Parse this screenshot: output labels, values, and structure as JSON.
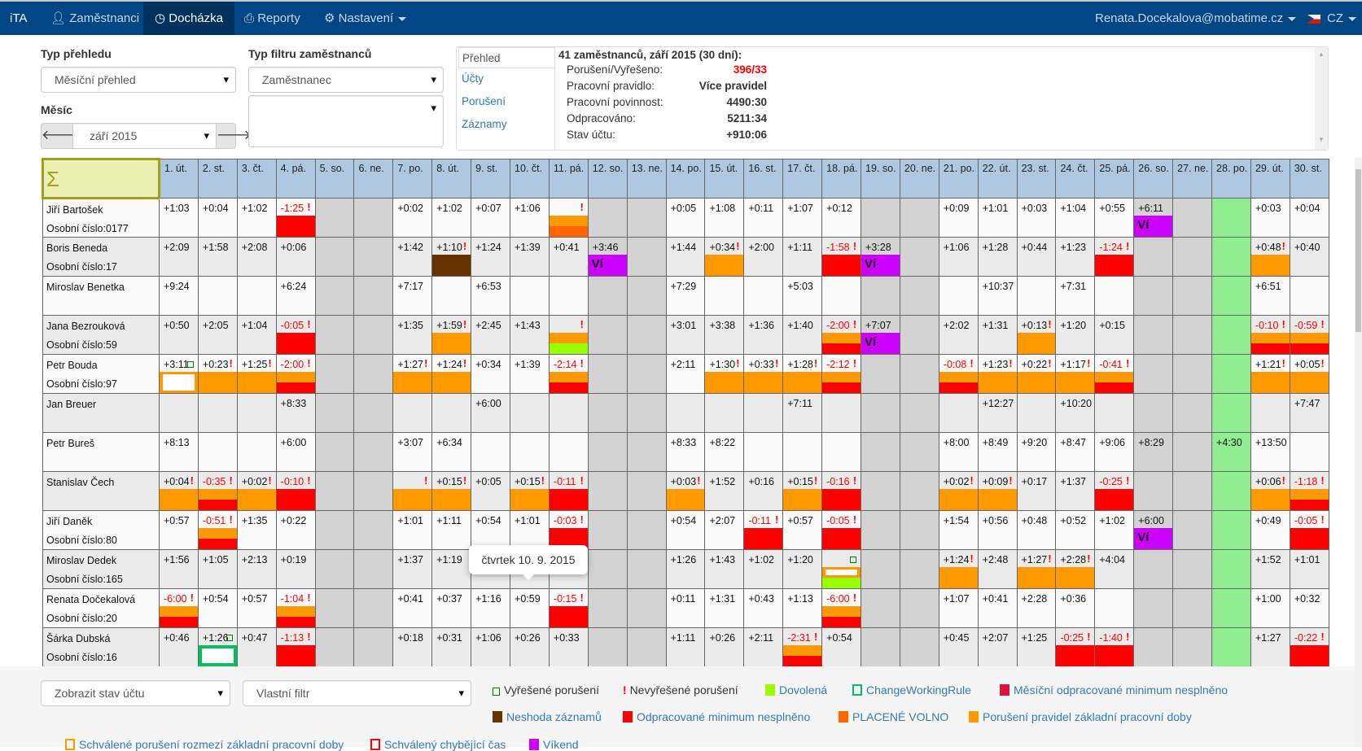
{
  "nav": {
    "brand": "iTA",
    "items": [
      {
        "label": "Zaměstnanci",
        "icon": "user-icon"
      },
      {
        "label": "Docházka",
        "icon": "clock-icon",
        "active": true
      },
      {
        "label": "Reporty",
        "icon": "printer-icon"
      },
      {
        "label": "Nastavení",
        "icon": "gear-icon"
      }
    ],
    "user": "Renata.Docekalova@mobatime.cz",
    "lang": "CZ"
  },
  "filters": {
    "overview_type_label": "Typ přehledu",
    "overview_type_value": "Měsíční přehled",
    "month_label": "Měsíc",
    "month_value": "září 2015",
    "employee_filter_label": "Typ filtru zaměstnanců",
    "employee_filter_value": "Zaměstnanec",
    "employee_filter_text": ""
  },
  "summary": {
    "tabs": [
      "Přehled",
      "Účty",
      "Porušení",
      "Záznamy"
    ],
    "active_tab": "Přehled",
    "title": "41 zaměstnanců, září 2015 (30 dní):",
    "rows": [
      {
        "label": "Porušení/Vyřešeno:",
        "value": "396/33",
        "red": true
      },
      {
        "label": "Pracovní pravidlo:",
        "value": "Více pravidel"
      },
      {
        "label": "Pracovní povinnost:",
        "value": "4490:30"
      },
      {
        "label": "Odpracováno:",
        "value": "5211:34"
      },
      {
        "label": "Stav účtu:",
        "value": "+910:06"
      }
    ]
  },
  "table": {
    "sigma": "Σ",
    "days": [
      {
        "l": "1. út.",
        "t": "w"
      },
      {
        "l": "2. st.",
        "t": "w"
      },
      {
        "l": "3. čt.",
        "t": "w"
      },
      {
        "l": "4. pá.",
        "t": "w"
      },
      {
        "l": "5. so.",
        "t": "we"
      },
      {
        "l": "6. ne.",
        "t": "we"
      },
      {
        "l": "7. po.",
        "t": "w"
      },
      {
        "l": "8. út.",
        "t": "w"
      },
      {
        "l": "9. st.",
        "t": "w"
      },
      {
        "l": "10. čt.",
        "t": "w"
      },
      {
        "l": "11. pá.",
        "t": "w"
      },
      {
        "l": "12. so.",
        "t": "we"
      },
      {
        "l": "13. ne.",
        "t": "we"
      },
      {
        "l": "14. po.",
        "t": "w"
      },
      {
        "l": "15. út.",
        "t": "w"
      },
      {
        "l": "16. st.",
        "t": "w"
      },
      {
        "l": "17. čt.",
        "t": "w"
      },
      {
        "l": "18. pá.",
        "t": "w"
      },
      {
        "l": "19. so.",
        "t": "we"
      },
      {
        "l": "20. ne.",
        "t": "we"
      },
      {
        "l": "21. po.",
        "t": "w"
      },
      {
        "l": "22. út.",
        "t": "w"
      },
      {
        "l": "23. st.",
        "t": "w"
      },
      {
        "l": "24. čt.",
        "t": "w"
      },
      {
        "l": "25. pá.",
        "t": "w"
      },
      {
        "l": "26. so.",
        "t": "we"
      },
      {
        "l": "27. ne.",
        "t": "we"
      },
      {
        "l": "28. po.",
        "t": "h"
      },
      {
        "l": "29. út.",
        "t": "w"
      },
      {
        "l": "30. st.",
        "t": "w"
      }
    ],
    "vacation_bar_label": "Ví",
    "rows": [
      {
        "name": "Jiří Bartošek",
        "id": "Osobní číslo:0177",
        "cells": [
          "+1:03",
          "+0:04",
          "+1:02",
          "-1:25|!|r",
          "",
          "",
          "+0:02",
          "+1:02",
          "+0:07",
          "+1:06",
          "|!|op",
          "",
          "",
          "+0:05",
          "+1:08",
          "+0:11",
          "+1:07",
          "+0:12",
          "",
          "",
          "+0:09",
          "+1:01",
          "+0:03",
          "+1:04",
          "+0:55",
          "+6:11||v",
          "",
          "",
          "+0:03",
          "+0:04"
        ]
      },
      {
        "name": "Boris Beneda",
        "id": "Osobní číslo:17",
        "cells": [
          "+2:09",
          "+1:58",
          "+2:08",
          "+0:06",
          "",
          "",
          "+1:42",
          "+1:10|!|b",
          "+1:24",
          "+1:39",
          "+0:41",
          "+3:46||v",
          "",
          "+1:44",
          "+0:34|!|o",
          "+2:00",
          "+1:11",
          "-1:58|!|r",
          "+3:28||v",
          "",
          "+1:06",
          "+1:28",
          "+0:44",
          "+1:23",
          "-1:24|!|r",
          "",
          "",
          "",
          "+0:48|!|o",
          "+0:40"
        ]
      },
      {
        "name": "Miroslav Benetka",
        "id": "",
        "cells": [
          "+9:24",
          "",
          "",
          "+6:24",
          "",
          "",
          "+7:17",
          "",
          "+6:53",
          "",
          "",
          "",
          "",
          "+7:29",
          "",
          "",
          "+5:03",
          "",
          "",
          "",
          "",
          "+10:37",
          "",
          "+7:31",
          "",
          "",
          "",
          "",
          "+6:51",
          ""
        ]
      },
      {
        "name": "Jana Bezrouková",
        "id": "Osobní číslo:59",
        "cells": [
          "+0:50",
          "+2:05",
          "+1:04",
          "-0:05|!|r",
          "",
          "",
          "+1:35",
          "+1:59|!|o",
          "+2:45",
          "+1:43",
          "|!|ol",
          "",
          "",
          "+3:01",
          "+3:38",
          "+1:36",
          "+1:40",
          "-2:00|!|or",
          "+7:07||v",
          "",
          "+2:02",
          "+1:31",
          "+0:13|!|o",
          "+1:20",
          "+0:15",
          "",
          "",
          "",
          "-0:10|!|or",
          "-0:59|!|or"
        ]
      },
      {
        "name": "Petr Bouda",
        "id": "Osobní číslo:97",
        "cells": [
          "+3:11|ok|s",
          "+0:23|!|o",
          "+1:25|!|o",
          "-2:00|!|or",
          "",
          "",
          "+1:27|!|o",
          "+1:24|!|o",
          "+0:34",
          "+1:39",
          "-2:14|!|or",
          "",
          "",
          "+2:11",
          "+1:30|!|o",
          "+0:33|!|o",
          "+1:28|!|o",
          "-2:12|!|or",
          "",
          "",
          "-0:08|!|or",
          "+1:23|!|o",
          "+0:22|!|o",
          "+1:17|!|o",
          "-0:41|!|or",
          "",
          "",
          "",
          "+1:21|!|o",
          "+0:05|!|o"
        ]
      },
      {
        "name": "Jan Breuer",
        "id": "",
        "cells": [
          "",
          "",
          "",
          "+8:33",
          "",
          "",
          "",
          "",
          "+6:00",
          "",
          "",
          "",
          "",
          "",
          "",
          "",
          "+7:11",
          "",
          "",
          "",
          "",
          "+12:27",
          "",
          "+10:20",
          "",
          "",
          "",
          "",
          "",
          "+7:47"
        ]
      },
      {
        "name": "Petr Bureš",
        "id": "",
        "cells": [
          "+8:13",
          "",
          "",
          "+6:00",
          "",
          "",
          "+3:07",
          "+6:34",
          "",
          "",
          "",
          "",
          "",
          "+8:33",
          "+8:22",
          "",
          "",
          "",
          "",
          "",
          "+8:00",
          "+8:49",
          "+9:20",
          "+8:47",
          "+9:06",
          "+8:29",
          "",
          "+4:30",
          "+13:50",
          ""
        ]
      },
      {
        "name": "Stanislav Čech",
        "id": "",
        "cells": [
          "+0:04|!|o",
          "-0:35|!|or",
          "+0:02|!|o",
          "-0:10|!|r",
          "",
          "",
          "|!|o",
          "+0:15|!|o",
          "+0:05",
          "+0:15|!|o",
          "-0:11|!|r",
          "",
          "",
          "+0:03|!|o",
          "+1:52",
          "+0:16",
          "+0:15|!|o",
          "-0:16|!|r",
          "",
          "",
          "+0:02|!|o",
          "+0:09|!|o",
          "+0:17",
          "+1:37",
          "-0:25|!|r",
          "",
          "",
          "",
          "+0:06|!|o",
          "-1:18|!|or"
        ]
      },
      {
        "name": "Jiří Daněk",
        "id": "Osobní číslo:80",
        "cells": [
          "+0:57",
          "-0:51|!|or",
          "+1:35",
          "+0:22",
          "",
          "",
          "+1:01",
          "+1:11",
          "+0:54",
          "+1:01",
          "-0:03|!|r",
          "",
          "",
          "+0:54",
          "+2:07",
          "-0:11|!|r",
          "+0:57",
          "-0:05|!|r",
          "",
          "",
          "+1:54",
          "+0:56",
          "+0:48",
          "+0:52",
          "+1:02",
          "+6:00||v",
          "",
          "",
          "+0:49",
          "-0:05|!|r"
        ]
      },
      {
        "name": "Miroslav Dedek",
        "id": "Osobní číslo:165",
        "cells": [
          "+1:56",
          "+1:05",
          "+2:13",
          "+0:19",
          "",
          "",
          "+1:37",
          "+1:19",
          "",
          "",
          "",
          "",
          "",
          "+1:26",
          "+1:43",
          "+1:02",
          "+1:20",
          "|ok|sl",
          "",
          "",
          "+1:24|!|o",
          "+2:48",
          "+1:27|!|o",
          "+2:28|!|o",
          "+4:04",
          "",
          "",
          "",
          "+1:52",
          "+1:01"
        ]
      },
      {
        "name": "Renata Dočekalová",
        "id": "Osobní číslo:20",
        "cells": [
          "-6:00|!|or",
          "+0:54",
          "+0:57",
          "-1:04|!|or",
          "",
          "",
          "+0:41",
          "+0:37",
          "+1:16",
          "+0:59",
          "-0:15|!|r",
          "",
          "",
          "+0:11",
          "+1:31",
          "+0:43",
          "+1:13",
          "-6:00|!|or",
          "",
          "",
          "+1:07",
          "+0:41",
          "+2:28",
          "+0:36",
          "",
          "",
          "",
          "",
          "+1:00",
          "+0:32"
        ]
      },
      {
        "name": "Šárka Dubská",
        "id": "Osobní číslo:16",
        "cells": [
          "+0:46",
          "+1:26|ok|g",
          "+0:47",
          "-1:13|!|r",
          "",
          "",
          "+0:18",
          "+0:31",
          "+1:06",
          "+0:26",
          "+0:33",
          "",
          "",
          "+1:11",
          "+0:26",
          "+2:11",
          "-2:31|!|or",
          "+0:54",
          "",
          "",
          "+0:45",
          "+2:07",
          "+1:25",
          "-0:25|!|r",
          "-1:40|!|r",
          "",
          "",
          "",
          "+1:27",
          "-0:22|!|r"
        ]
      },
      {
        "name": "",
        "id": "",
        "cells": [
          "",
          "",
          "",
          "",
          "",
          "",
          "",
          "",
          "",
          "",
          "",
          "",
          "",
          "",
          "",
          "",
          "",
          "",
          "",
          "",
          "",
          "",
          "",
          "",
          "",
          "",
          "",
          "",
          "",
          ""
        ]
      }
    ]
  },
  "tooltip": "čtvrtek 10. 9. 2015",
  "footer": {
    "account_select": "Zobrazit stav účtu",
    "custom_filter": "Vlastní filtr",
    "legend": [
      {
        "label": "Vyřešené porušení",
        "kind": "ok",
        "color": "#008000"
      },
      {
        "label": "Nevyřešené porušení",
        "kind": "mark",
        "color": "#ff0000"
      },
      {
        "label": "Dovolená",
        "kind": "fill",
        "color": "#99ff00"
      },
      {
        "label": "ChangeWorkingRule",
        "kind": "outline",
        "color": "#00c060"
      },
      {
        "label": "Měsíční odpracované minimum nesplněno",
        "kind": "fill",
        "color": "#dc143c"
      },
      {
        "label": "Neshoda záznamů",
        "kind": "fill",
        "color": "#663300"
      },
      {
        "label": "Odpracované minimum nesplněno",
        "kind": "fill",
        "color": "#ff0000"
      },
      {
        "label": "PLACENÉ VOLNO",
        "kind": "fill",
        "color": "#ff6600"
      },
      {
        "label": "Porušení pravidel základní pracovní doby",
        "kind": "fill",
        "color": "#ff9900"
      },
      {
        "label": "Schválené porušení rozmezí základní pracovní doby",
        "kind": "outline",
        "color": "#ff9900"
      },
      {
        "label": "Schválený chybějící čas",
        "kind": "outline",
        "color": "#ff0000"
      },
      {
        "label": "Víkend",
        "kind": "fill",
        "color": "#cc00ff"
      }
    ]
  },
  "colors": {
    "o": "#ff9900",
    "r": "#ff0000",
    "p": "#ff6600",
    "b": "#663300",
    "l": "#99ff00",
    "v": "#cc00ff",
    "weekend": "#d3d3d3",
    "holiday": "#90ee90",
    "row_odd": "#fafafa",
    "row_even": "#ebebeb"
  }
}
